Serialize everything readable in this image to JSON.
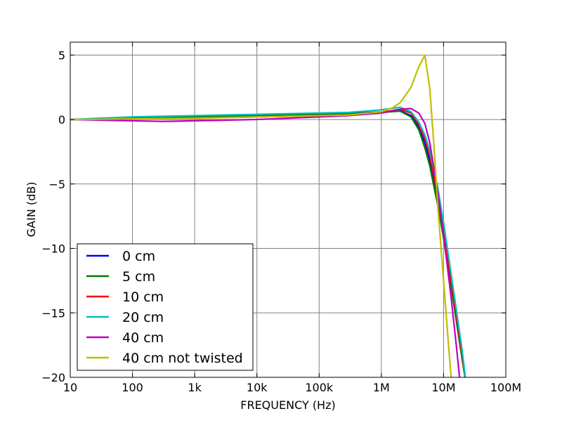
{
  "chart_data": {
    "type": "line",
    "title": "",
    "xlabel": "FREQUENCY (Hz)",
    "ylabel": "GAIN (dB)",
    "xscale": "log",
    "xlim": [
      10,
      100000000
    ],
    "ylim": [
      -20,
      6
    ],
    "grid": true,
    "legend_position": "lower-left",
    "x_ticks": [
      {
        "value": 10,
        "label": "10"
      },
      {
        "value": 100,
        "label": "100"
      },
      {
        "value": 1000,
        "label": "1k"
      },
      {
        "value": 10000,
        "label": "10k"
      },
      {
        "value": 100000,
        "label": "100k"
      },
      {
        "value": 1000000,
        "label": "1M"
      },
      {
        "value": 10000000,
        "label": "10M"
      },
      {
        "value": 100000000,
        "label": "100M"
      }
    ],
    "y_ticks": [
      {
        "value": 5,
        "label": "5"
      },
      {
        "value": 0,
        "label": "0"
      },
      {
        "value": -5,
        "label": "−5"
      },
      {
        "value": -10,
        "label": "−10"
      },
      {
        "value": -15,
        "label": "−15"
      },
      {
        "value": -20,
        "label": "−20"
      }
    ],
    "series": [
      {
        "name": "0 cm",
        "color": "#0000ff",
        "points": [
          [
            10,
            0
          ],
          [
            30,
            0.05
          ],
          [
            100,
            0.1
          ],
          [
            300,
            0.15
          ],
          [
            1000,
            0.2
          ],
          [
            3000,
            0.25
          ],
          [
            10000,
            0.3
          ],
          [
            30000,
            0.35
          ],
          [
            100000,
            0.4
          ],
          [
            300000,
            0.45
          ],
          [
            1000000,
            0.6
          ],
          [
            2000000,
            0.7
          ],
          [
            3000000,
            0.3
          ],
          [
            4000000,
            -0.6
          ],
          [
            5000000,
            -1.8
          ],
          [
            6000000,
            -3.2
          ],
          [
            8000000,
            -6.2
          ],
          [
            10000000,
            -8.8
          ],
          [
            15000000,
            -14.5
          ],
          [
            20000000,
            -18.5
          ],
          [
            23000000,
            -20.5
          ]
        ]
      },
      {
        "name": "5 cm",
        "color": "#008000",
        "points": [
          [
            10,
            0
          ],
          [
            30,
            0.05
          ],
          [
            100,
            0.1
          ],
          [
            300,
            0.15
          ],
          [
            1000,
            0.2
          ],
          [
            3000,
            0.25
          ],
          [
            10000,
            0.3
          ],
          [
            30000,
            0.35
          ],
          [
            100000,
            0.4
          ],
          [
            300000,
            0.45
          ],
          [
            1000000,
            0.55
          ],
          [
            2000000,
            0.65
          ],
          [
            3000000,
            0.2
          ],
          [
            4000000,
            -0.8
          ],
          [
            5000000,
            -2.2
          ],
          [
            6000000,
            -3.6
          ],
          [
            8000000,
            -6.6
          ],
          [
            10000000,
            -9.2
          ],
          [
            15000000,
            -14.7
          ],
          [
            20000000,
            -18.7
          ],
          [
            23000000,
            -20.5
          ]
        ]
      },
      {
        "name": "10 cm",
        "color": "#ff0000",
        "points": [
          [
            10,
            0
          ],
          [
            30,
            0.02
          ],
          [
            100,
            0.05
          ],
          [
            300,
            0.08
          ],
          [
            1000,
            0.1
          ],
          [
            3000,
            0.15
          ],
          [
            10000,
            0.2
          ],
          [
            30000,
            0.25
          ],
          [
            100000,
            0.3
          ],
          [
            300000,
            0.35
          ],
          [
            1000000,
            0.55
          ],
          [
            2000000,
            0.8
          ],
          [
            3000000,
            0.5
          ],
          [
            4000000,
            -0.4
          ],
          [
            5000000,
            -1.5
          ],
          [
            6000000,
            -2.8
          ],
          [
            8000000,
            -5.8
          ],
          [
            10000000,
            -8.6
          ],
          [
            15000000,
            -14.3
          ],
          [
            20000000,
            -18.4
          ],
          [
            23000000,
            -20.5
          ]
        ]
      },
      {
        "name": "20 cm",
        "color": "#00bfbf",
        "points": [
          [
            10,
            0
          ],
          [
            30,
            0.1
          ],
          [
            100,
            0.2
          ],
          [
            300,
            0.25
          ],
          [
            1000,
            0.3
          ],
          [
            3000,
            0.35
          ],
          [
            10000,
            0.4
          ],
          [
            30000,
            0.45
          ],
          [
            100000,
            0.5
          ],
          [
            300000,
            0.55
          ],
          [
            1000000,
            0.75
          ],
          [
            2000000,
            0.95
          ],
          [
            3000000,
            0.6
          ],
          [
            4000000,
            -0.2
          ],
          [
            5000000,
            -1.2
          ],
          [
            6000000,
            -2.4
          ],
          [
            8000000,
            -5.2
          ],
          [
            10000000,
            -8.0
          ],
          [
            15000000,
            -13.8
          ],
          [
            20000000,
            -18.0
          ],
          [
            23000000,
            -20.5
          ]
        ]
      },
      {
        "name": "40 cm",
        "color": "#bf00bf",
        "points": [
          [
            10,
            0
          ],
          [
            30,
            -0.05
          ],
          [
            100,
            -0.1
          ],
          [
            300,
            -0.15
          ],
          [
            1000,
            -0.1
          ],
          [
            3000,
            -0.05
          ],
          [
            10000,
            0
          ],
          [
            30000,
            0.1
          ],
          [
            100000,
            0.2
          ],
          [
            300000,
            0.3
          ],
          [
            1000000,
            0.5
          ],
          [
            2000000,
            0.8
          ],
          [
            3000000,
            0.85
          ],
          [
            4000000,
            0.5
          ],
          [
            5000000,
            -0.3
          ],
          [
            6000000,
            -1.8
          ],
          [
            8000000,
            -5.5
          ],
          [
            10000000,
            -9.0
          ],
          [
            13000000,
            -13.5
          ],
          [
            16000000,
            -17.5
          ],
          [
            18500000,
            -20.5
          ]
        ]
      },
      {
        "name": "40 cm not twisted",
        "color": "#bfbf00",
        "points": [
          [
            10,
            0
          ],
          [
            30,
            0.02
          ],
          [
            100,
            0.05
          ],
          [
            300,
            0.08
          ],
          [
            1000,
            0.1
          ],
          [
            3000,
            0.15
          ],
          [
            10000,
            0.2
          ],
          [
            30000,
            0.25
          ],
          [
            100000,
            0.3
          ],
          [
            300000,
            0.35
          ],
          [
            1000000,
            0.6
          ],
          [
            1500000,
            0.9
          ],
          [
            2000000,
            1.3
          ],
          [
            3000000,
            2.5
          ],
          [
            4000000,
            4.1
          ],
          [
            5000000,
            5.0
          ],
          [
            6000000,
            2.4
          ],
          [
            7000000,
            -2.0
          ],
          [
            8000000,
            -6.5
          ],
          [
            10000000,
            -12.5
          ],
          [
            12000000,
            -17.5
          ],
          [
            13500000,
            -20.5
          ]
        ]
      }
    ]
  }
}
